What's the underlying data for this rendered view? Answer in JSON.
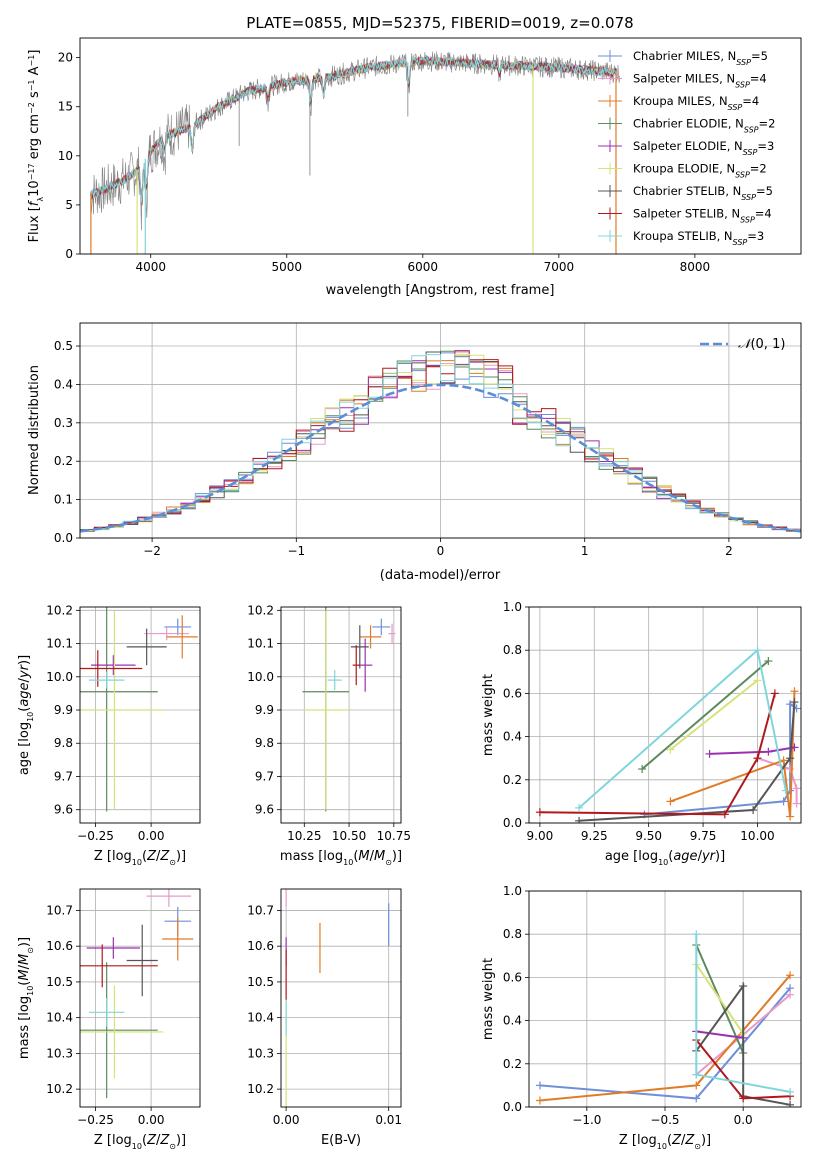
{
  "figure": {
    "title": "PLATE=0855, MJD=52375, FIBERID=0019, z=0.078"
  },
  "colors": {
    "Chabrier MILES": "#6f8fd8",
    "Salpeter MILES": "#e89ac8",
    "Kroupa MILES": "#e07b28",
    "Chabrier ELODIE": "#5c8a5c",
    "Salpeter ELODIE": "#9b2fb0",
    "Kroupa ELODIE": "#d6e27a",
    "Chabrier STELIB": "#555555",
    "Salpeter STELIB": "#b0181c",
    "Kroupa STELIB": "#7fd6dc",
    "data": "#808080"
  },
  "chart_data": [
    {
      "id": "spectrum",
      "type": "line",
      "title": "PLATE=0855, MJD=52375, FIBERID=0019, z=0.078",
      "xlabel": "wavelength [Angstrom, rest frame]",
      "ylabel": "Flux [f_λ10^-17 erg cm^-2 s^-1 A^-1]",
      "xlim": [
        3480,
        8780
      ],
      "ylim": [
        0,
        22
      ],
      "xticks": [
        4000,
        5000,
        6000,
        7000,
        8000
      ],
      "yticks": [
        0,
        5,
        10,
        15,
        20
      ],
      "legend_position": "top-right",
      "legend": [
        {
          "name": "Chabrier MILES",
          "nssp": "5"
        },
        {
          "name": "Salpeter MILES",
          "nssp": "4"
        },
        {
          "name": "Kroupa MILES",
          "nssp": "4"
        },
        {
          "name": "Chabrier ELODIE",
          "nssp": "2"
        },
        {
          "name": "Salpeter ELODIE",
          "nssp": "3"
        },
        {
          "name": "Kroupa ELODIE",
          "nssp": "2"
        },
        {
          "name": "Chabrier STELIB",
          "nssp": "5"
        },
        {
          "name": "Salpeter STELIB",
          "nssp": "4"
        },
        {
          "name": "Kroupa STELIB",
          "nssp": "3"
        }
      ],
      "continuum": {
        "x": [
          3550,
          3650,
          3800,
          3900,
          4000,
          4100,
          4300,
          4500,
          4700,
          5000,
          5300,
          5600,
          6000,
          6500,
          7000,
          7400
        ],
        "y": [
          6.0,
          6.5,
          7.5,
          8.5,
          10.5,
          12.0,
          13.0,
          15.0,
          16.5,
          17.5,
          18.0,
          19.0,
          19.7,
          19.3,
          19.0,
          18.5
        ]
      }
    },
    {
      "id": "residual-histogram",
      "type": "histogram",
      "xlabel": "(data-model)/error",
      "ylabel": "Normed distribution",
      "xlim": [
        -2.5,
        2.5
      ],
      "ylim": [
        0,
        0.56
      ],
      "xticks": [
        -2,
        -1,
        0,
        1,
        2
      ],
      "yticks": [
        0.0,
        0.1,
        0.2,
        0.3,
        0.4,
        0.5
      ],
      "reference_curve": "N(0,1)",
      "bin_width": 0.1
    },
    {
      "id": "z-vs-age",
      "type": "errorbar",
      "xlabel": "Z [log10(Z/Z⊙)]",
      "ylabel": "age [log10(age/yr)]",
      "xlim": [
        -0.32,
        0.22
      ],
      "ylim": [
        9.56,
        10.21
      ],
      "xticks": [
        -0.25,
        0.0
      ],
      "yticks": [
        9.6,
        9.7,
        9.8,
        9.9,
        10.0,
        10.1,
        10.2
      ],
      "points": [
        {
          "series": "Chabrier MILES",
          "x": 0.12,
          "y": 10.15,
          "xerr": 0.06,
          "yerr": 0.025
        },
        {
          "series": "Salpeter MILES",
          "x": 0.07,
          "y": 10.13,
          "xerr": 0.1,
          "yerr": 0.02
        },
        {
          "series": "Kroupa MILES",
          "x": 0.14,
          "y": 10.12,
          "xerr": 0.07,
          "yerr": 0.065
        },
        {
          "series": "Chabrier ELODIE",
          "x": -0.2,
          "y": 9.955,
          "xerr": 0.23,
          "yerr": 0.36
        },
        {
          "series": "Salpeter ELODIE",
          "x": -0.17,
          "y": 10.035,
          "xerr": 0.1,
          "yerr": 0.03
        },
        {
          "series": "Kroupa ELODIE",
          "x": -0.165,
          "y": 9.9,
          "xerr": 0.22,
          "yerr": 0.3
        },
        {
          "series": "Chabrier STELIB",
          "x": -0.02,
          "y": 10.09,
          "xerr": 0.09,
          "yerr": 0.055
        },
        {
          "series": "Salpeter STELIB",
          "x": -0.24,
          "y": 10.025,
          "xerr": 0.2,
          "yerr": 0.055
        },
        {
          "series": "Kroupa STELIB",
          "x": -0.2,
          "y": 9.99,
          "xerr": 0.08,
          "yerr": 0.025
        }
      ]
    },
    {
      "id": "mass-vs-age",
      "type": "errorbar",
      "xlabel": "mass [log10(M/M⊙)]",
      "ylabel": "",
      "xlim": [
        10.12,
        10.79
      ],
      "ylim": [
        9.56,
        10.21
      ],
      "xticks": [
        10.25,
        10.5,
        10.75
      ],
      "yticks": [
        9.6,
        9.7,
        9.8,
        9.9,
        10.0,
        10.1,
        10.2
      ],
      "points": [
        {
          "series": "Chabrier MILES",
          "x": 10.68,
          "y": 10.15,
          "xerr": 0.05,
          "yerr": 0.025
        },
        {
          "series": "Salpeter MILES",
          "x": 10.74,
          "y": 10.13,
          "xerr": 0.02,
          "yerr": 0.03
        },
        {
          "series": "Kroupa MILES",
          "x": 10.62,
          "y": 10.12,
          "xerr": 0.06,
          "yerr": 0.035
        },
        {
          "series": "Chabrier ELODIE",
          "x": 10.37,
          "y": 9.955,
          "xerr": 0.13,
          "yerr": 0.36
        },
        {
          "series": "Salpeter ELODIE",
          "x": 10.59,
          "y": 10.035,
          "xerr": 0.04,
          "yerr": 0.08
        },
        {
          "series": "Kroupa ELODIE",
          "x": 10.37,
          "y": 9.9,
          "xerr": 0.13,
          "yerr": 0.3
        },
        {
          "series": "Chabrier STELIB",
          "x": 10.56,
          "y": 10.09,
          "xerr": 0.05,
          "yerr": 0.065
        },
        {
          "series": "Salpeter STELIB",
          "x": 10.54,
          "y": 10.035,
          "xerr": 0.02,
          "yerr": 0.06
        },
        {
          "series": "Kroupa STELIB",
          "x": 10.42,
          "y": 9.99,
          "xerr": 0.04,
          "yerr": 0.03
        }
      ]
    },
    {
      "id": "age-weights",
      "type": "line",
      "xlabel": "age [log10(age/yr)]",
      "ylabel": "mass weight",
      "xlim": [
        8.95,
        10.2
      ],
      "ylim": [
        0,
        1.0
      ],
      "xticks": [
        9.0,
        9.25,
        9.5,
        9.75,
        10.0
      ],
      "yticks": [
        0.0,
        0.2,
        0.4,
        0.6,
        0.8,
        1.0
      ],
      "series": [
        {
          "name": "Chabrier MILES",
          "x": [
            9.48,
            10.12,
            10.15,
            10.15,
            10.18
          ],
          "y": [
            0.04,
            0.1,
            0.15,
            0.55,
            0.53
          ]
        },
        {
          "name": "Salpeter MILES",
          "x": [
            10.0,
            10.15,
            10.18,
            10.18
          ],
          "y": [
            0.3,
            0.25,
            0.16,
            0.09
          ]
        },
        {
          "name": "Kroupa MILES",
          "x": [
            9.6,
            10.12,
            10.15,
            10.17
          ],
          "y": [
            0.1,
            0.29,
            0.03,
            0.61
          ]
        },
        {
          "name": "Chabrier ELODIE",
          "x": [
            9.47,
            10.05
          ],
          "y": [
            0.25,
            0.75
          ]
        },
        {
          "name": "Salpeter ELODIE",
          "x": [
            9.78,
            10.05,
            10.17
          ],
          "y": [
            0.32,
            0.33,
            0.35
          ]
        },
        {
          "name": "Kroupa ELODIE",
          "x": [
            9.6,
            10.0
          ],
          "y": [
            0.34,
            0.66
          ]
        },
        {
          "name": "Chabrier STELIB",
          "x": [
            9.18,
            9.98,
            10.15,
            10.17
          ],
          "y": [
            0.01,
            0.06,
            0.3,
            0.56
          ]
        },
        {
          "name": "Salpeter STELIB",
          "x": [
            9.0,
            9.85,
            10.0,
            10.08
          ],
          "y": [
            0.05,
            0.04,
            0.3,
            0.6
          ]
        },
        {
          "name": "Kroupa STELIB",
          "x": [
            9.18,
            10.0,
            10.13
          ],
          "y": [
            0.07,
            0.8,
            0.15
          ]
        }
      ]
    },
    {
      "id": "z-vs-mass",
      "type": "errorbar",
      "xlabel": "Z [log10(Z/Z⊙)]",
      "ylabel": "mass [log10(M/M⊙)]",
      "xlim": [
        -0.32,
        0.22
      ],
      "ylim": [
        10.15,
        10.76
      ],
      "xticks": [
        -0.25,
        0.0
      ],
      "yticks": [
        10.2,
        10.3,
        10.4,
        10.5,
        10.6,
        10.7
      ],
      "points": [
        {
          "series": "Chabrier MILES",
          "x": 0.12,
          "y": 10.67,
          "xerr": 0.06,
          "yerr": 0.04
        },
        {
          "series": "Salpeter MILES",
          "x": 0.08,
          "y": 10.74,
          "xerr": 0.1,
          "yerr": 0.03
        },
        {
          "series": "Kroupa MILES",
          "x": 0.12,
          "y": 10.62,
          "xerr": 0.07,
          "yerr": 0.06
        },
        {
          "series": "Chabrier ELODIE",
          "x": -0.2,
          "y": 10.365,
          "xerr": 0.23,
          "yerr": 0.19
        },
        {
          "series": "Salpeter ELODIE",
          "x": -0.17,
          "y": 10.595,
          "xerr": 0.12,
          "yerr": 0.03
        },
        {
          "series": "Kroupa ELODIE",
          "x": -0.165,
          "y": 10.36,
          "xerr": 0.22,
          "yerr": 0.13
        },
        {
          "series": "Chabrier STELIB",
          "x": -0.04,
          "y": 10.56,
          "xerr": 0.07,
          "yerr": 0.1
        },
        {
          "series": "Salpeter STELIB",
          "x": -0.22,
          "y": 10.545,
          "xerr": 0.25,
          "yerr": 0.06
        },
        {
          "series": "Kroupa STELIB",
          "x": -0.2,
          "y": 10.415,
          "xerr": 0.08,
          "yerr": 0.04
        }
      ]
    },
    {
      "id": "ebv-vs-mass",
      "type": "errorbar",
      "xlabel": "E(B-V)",
      "ylabel": "",
      "xlim": [
        -0.0005,
        0.0112
      ],
      "ylim": [
        10.15,
        10.76
      ],
      "xticks": [
        0.0,
        0.01
      ],
      "xtick_labels": [
        "0.00",
        "0.01"
      ],
      "yticks": [
        10.2,
        10.3,
        10.4,
        10.5,
        10.6,
        10.7
      ],
      "points": [
        {
          "series": "Chabrier MILES",
          "x": 0.01,
          "y": 10.66,
          "xerr": 0,
          "yerr": 0.06
        },
        {
          "series": "Salpeter MILES",
          "x": 0.0,
          "y": 10.74,
          "xerr": 0,
          "yerr": 0.03
        },
        {
          "series": "Kroupa MILES",
          "x": 0.0033,
          "y": 10.595,
          "xerr": 0,
          "yerr": 0.07
        },
        {
          "series": "Salpeter ELODIE",
          "x": 0.0,
          "y": 10.585,
          "xerr": 0,
          "yerr": 0.04
        },
        {
          "series": "Kroupa ELODIE",
          "x": 0.0,
          "y": 10.3,
          "xerr": 0,
          "yerr": 0.15
        },
        {
          "series": "Salpeter STELIB",
          "x": 0.0,
          "y": 10.52,
          "xerr": 0,
          "yerr": 0.07
        },
        {
          "series": "Kroupa STELIB",
          "x": 0.0,
          "y": 10.4,
          "xerr": 0,
          "yerr": 0.05
        }
      ]
    },
    {
      "id": "z-weights",
      "type": "line",
      "xlabel": "Z [log10(Z/Z⊙)]",
      "ylabel": "mass weight",
      "xlim": [
        -1.37,
        0.37
      ],
      "ylim": [
        0,
        1.0
      ],
      "xticks": [
        -1.0,
        -0.5,
        0.0
      ],
      "yticks": [
        0.0,
        0.2,
        0.4,
        0.6,
        0.8,
        1.0
      ],
      "series": [
        {
          "name": "Chabrier MILES",
          "x": [
            -1.3,
            -0.3,
            0.3
          ],
          "y": [
            0.1,
            0.04,
            0.55
          ]
        },
        {
          "name": "Salpeter MILES",
          "x": [
            -0.3,
            0.3
          ],
          "y": [
            0.15,
            0.52
          ]
        },
        {
          "name": "Kroupa MILES",
          "x": [
            -1.3,
            -0.3,
            0.3
          ],
          "y": [
            0.03,
            0.1,
            0.61
          ]
        },
        {
          "name": "Chabrier ELODIE",
          "x": [
            -0.3,
            0.0
          ],
          "y": [
            0.75,
            0.25
          ]
        },
        {
          "name": "Salpeter ELODIE",
          "x": [
            -0.3,
            0.0
          ],
          "y": [
            0.35,
            0.32
          ]
        },
        {
          "name": "Kroupa ELODIE",
          "x": [
            -0.3,
            0.0
          ],
          "y": [
            0.66,
            0.34
          ]
        },
        {
          "name": "Chabrier STELIB",
          "x": [
            -0.3,
            0.0,
            0.0,
            0.3
          ],
          "y": [
            0.26,
            0.56,
            0.05,
            0.01
          ]
        },
        {
          "name": "Salpeter STELIB",
          "x": [
            -0.3,
            0.0,
            0.3
          ],
          "y": [
            0.31,
            0.04,
            0.05
          ]
        },
        {
          "name": "Kroupa STELIB",
          "x": [
            -0.3,
            -0.3,
            0.3
          ],
          "y": [
            0.8,
            0.15,
            0.07
          ]
        }
      ]
    }
  ]
}
